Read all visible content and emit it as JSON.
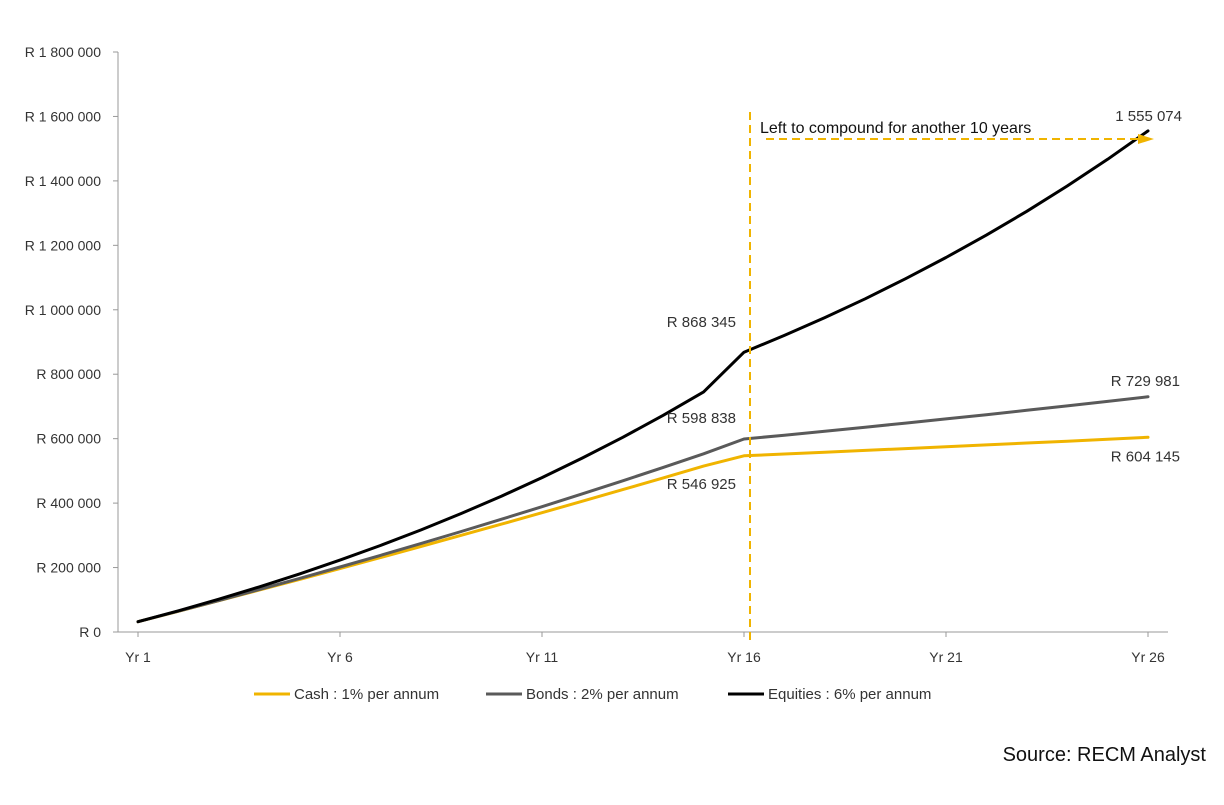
{
  "chart_data": {
    "type": "line",
    "title": "",
    "xlabel": "",
    "ylabel": "",
    "x_categories": [
      "Yr 1",
      "Yr 2",
      "Yr 3",
      "Yr 4",
      "Yr 5",
      "Yr 6",
      "Yr 7",
      "Yr 8",
      "Yr 9",
      "Yr 10",
      "Yr 11",
      "Yr 12",
      "Yr 13",
      "Yr 14",
      "Yr 15",
      "Yr 16",
      "Yr 17",
      "Yr 18",
      "Yr 19",
      "Yr 20",
      "Yr 21",
      "Yr 22",
      "Yr 23",
      "Yr 24",
      "Yr 25",
      "Yr 26"
    ],
    "x_tick_labels": [
      "Yr 1",
      "Yr 6",
      "Yr 11",
      "Yr 16",
      "Yr 21",
      "Yr 26"
    ],
    "x_tick_indices": [
      0,
      5,
      10,
      15,
      20,
      25
    ],
    "ylim": [
      0,
      1800000
    ],
    "y_ticks": [
      0,
      200000,
      400000,
      600000,
      800000,
      1000000,
      1200000,
      1400000,
      1600000,
      1800000
    ],
    "y_tick_labels": [
      "R 0",
      "R 200 000",
      "R 400 000",
      "R 600 000",
      "R 800 000",
      "R 1 000 000",
      "R 1 200 000",
      "R 1 400 000",
      "R 1 600 000",
      "R 1 800 000"
    ],
    "grid": false,
    "legend_position": "bottom",
    "series": [
      {
        "name": "Cash : 1% per annum",
        "color": "#F0B400",
        "values": [
          32000,
          64300,
          97000,
          130000,
          163300,
          197000,
          231000,
          265300,
          300000,
          335000,
          370300,
          406000,
          442000,
          478300,
          515000,
          546925,
          552400,
          557900,
          563500,
          569100,
          574800,
          580600,
          586400,
          592200,
          598200,
          604145
        ]
      },
      {
        "name": "Bonds : 2% per annum",
        "color": "#5A5A5A",
        "values": [
          32000,
          64600,
          97900,
          131800,
          166400,
          201700,
          237700,
          274400,
          311800,
          350000,
          389000,
          428800,
          469300,
          510700,
          552900,
          598838,
          610800,
          623000,
          635500,
          648200,
          661200,
          674400,
          687900,
          701600,
          715600,
          729981
        ]
      },
      {
        "name": "Equities : 6% per annum",
        "color": "#000000",
        "values": [
          32000,
          65900,
          101900,
          140000,
          180300,
          223200,
          268600,
          316700,
          367700,
          421800,
          479100,
          539900,
          604300,
          672600,
          745000,
          868345,
          920400,
          975700,
          1034200,
          1096300,
          1162100,
          1231800,
          1305700,
          1384100,
          1467100,
          1555074
        ]
      }
    ],
    "data_labels": [
      {
        "text": "R 868 345",
        "series": "Equities : 6% per annum",
        "index": 15
      },
      {
        "text": "R 598 838",
        "series": "Bonds : 2% per annum",
        "index": 15
      },
      {
        "text": "R 546 925",
        "series": "Cash : 1% per annum",
        "index": 15
      },
      {
        "text": "1 555 074",
        "series": "Equities : 6% per annum",
        "index": 25
      },
      {
        "text": "R 729 981",
        "series": "Bonds : 2% per annum",
        "index": 25
      },
      {
        "text": "R 604 145",
        "series": "Cash : 1% per annum",
        "index": 25
      }
    ],
    "annotations": [
      {
        "text": "Left to compound for another 10 years",
        "type": "vertical-dashed-line-with-arrow",
        "x_category": "Yr 16",
        "arrow_to_category": "Yr 26",
        "color": "#F0B400"
      }
    ]
  },
  "source": "Source: RECM Analyst"
}
